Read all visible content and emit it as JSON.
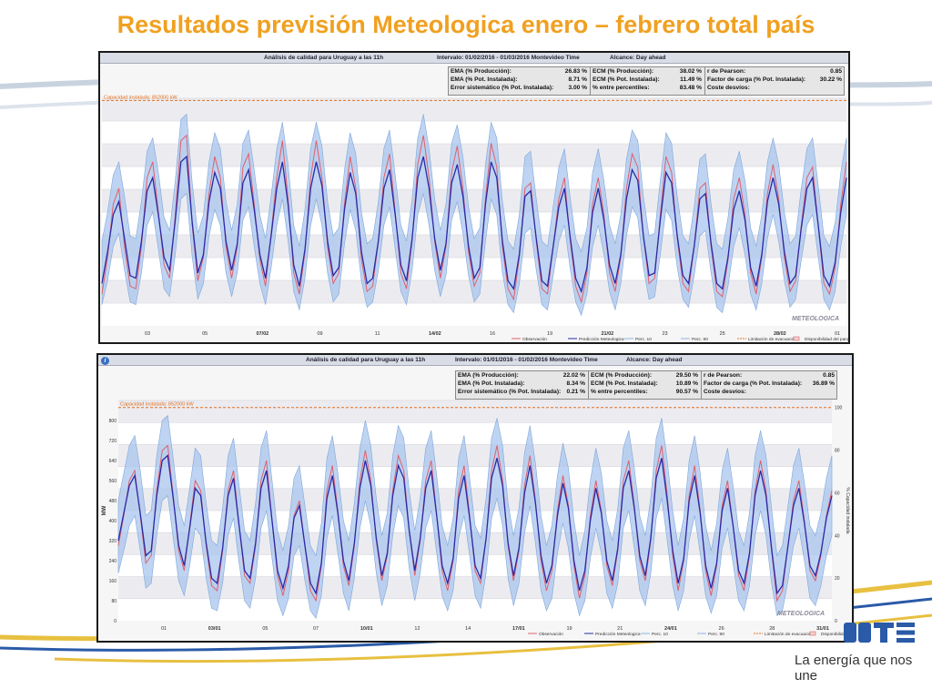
{
  "slide": {
    "title": "Resultados previsión Meteologica enero – febrero total país",
    "logo_tagline": "La energía que nos une"
  },
  "colors": {
    "title": "#f0a020",
    "observation": "#e0606a",
    "prediction": "#2a2aa8",
    "band": "#a9c6ee",
    "limit": "#e07020"
  },
  "chart_data": [
    {
      "type": "line",
      "title": "Análisis de calidad para Uruguay a las 11h",
      "interval": "Intervalo: 01/02/2016 - 01/03/2016 Montevideo Time",
      "alcance": "Alcance: Day ahead",
      "capacity_label": "Capacidad instalada: 852000 kW",
      "stats": [
        [
          [
            "EMA (% Producción):",
            "26.83 %"
          ],
          [
            "EMA (% Pot. Instalada):",
            "8.71 %"
          ],
          [
            "Error sistemático (% Pot. Instalada):",
            "3.00 %"
          ]
        ],
        [
          [
            "ECM (% Producción):",
            "38.02 %"
          ],
          [
            "ECM (% Pot. Instalada):",
            "11.49 %"
          ],
          [
            "% entre percentiles:",
            "83.48 %"
          ]
        ],
        [
          [
            "r de Pearson:",
            "0.85"
          ],
          [
            "Factor de carga (% Pot. Instalada):",
            "30.22 %"
          ],
          [
            "Coste desvíos:",
            ""
          ]
        ]
      ],
      "x_ticks": [
        "03",
        "05",
        "07/02",
        "09",
        "11",
        "14/02",
        "16",
        "19",
        "21/02",
        "23",
        "25",
        "28/02",
        "01"
      ],
      "legend": [
        "Observación",
        "Predicción Meteologica",
        "Perc. 10",
        "Perc. 90",
        "Limitación de evacuación",
        "Disponibilidad del parque"
      ],
      "watermark": "METEOLOGICA",
      "y_range": [
        0,
        860
      ],
      "capacity": 852,
      "observation": [
        120,
        260,
        460,
        520,
        300,
        150,
        140,
        300,
        560,
        620,
        430,
        230,
        180,
        420,
        700,
        720,
        380,
        170,
        260,
        500,
        640,
        560,
        300,
        180,
        300,
        600,
        650,
        460,
        250,
        150,
        350,
        560,
        700,
        480,
        200,
        120,
        280,
        560,
        700,
        560,
        300,
        160,
        200,
        460,
        640,
        520,
        250,
        130,
        150,
        320,
        560,
        650,
        430,
        200,
        140,
        320,
        610,
        720,
        560,
        320,
        180,
        300,
        580,
        680,
        520,
        280,
        150,
        200,
        480,
        690,
        600,
        300,
        140,
        100,
        260,
        520,
        540,
        320,
        140,
        120,
        300,
        480,
        560,
        330,
        150,
        90,
        200,
        460,
        560,
        420,
        200,
        130,
        260,
        520,
        650,
        600,
        340,
        160,
        180,
        420,
        640,
        580,
        330,
        160,
        130,
        300,
        520,
        540,
        300,
        130,
        110,
        250,
        480,
        560,
        420,
        200,
        120,
        260,
        500,
        610,
        480,
        260,
        130,
        170,
        380,
        560,
        600,
        380,
        160,
        120,
        220,
        460,
        620
      ],
      "prediction": [
        160,
        280,
        420,
        470,
        330,
        190,
        180,
        320,
        510,
        560,
        420,
        260,
        210,
        400,
        620,
        640,
        390,
        200,
        270,
        470,
        580,
        520,
        320,
        210,
        310,
        540,
        590,
        440,
        270,
        180,
        340,
        520,
        620,
        460,
        230,
        150,
        290,
        520,
        620,
        530,
        320,
        190,
        220,
        440,
        580,
        500,
        280,
        160,
        180,
        320,
        520,
        590,
        420,
        230,
        170,
        330,
        560,
        640,
        520,
        330,
        210,
        310,
        540,
        610,
        490,
        300,
        180,
        220,
        460,
        620,
        560,
        320,
        170,
        140,
        270,
        490,
        510,
        330,
        170,
        150,
        300,
        450,
        520,
        340,
        180,
        130,
        220,
        430,
        520,
        400,
        230,
        160,
        270,
        480,
        590,
        550,
        340,
        190,
        200,
        400,
        580,
        540,
        340,
        190,
        160,
        300,
        480,
        500,
        310,
        160,
        140,
        260,
        440,
        510,
        400,
        220,
        150,
        270,
        470,
        560,
        460,
        280,
        160,
        190,
        370,
        520,
        560,
        380,
        190,
        150,
        240,
        430,
        560
      ],
      "p10": [
        80,
        170,
        300,
        350,
        210,
        90,
        80,
        200,
        380,
        430,
        290,
        140,
        110,
        270,
        480,
        500,
        260,
        100,
        160,
        340,
        440,
        380,
        200,
        110,
        200,
        400,
        450,
        300,
        160,
        80,
        220,
        380,
        480,
        320,
        130,
        60,
        180,
        380,
        480,
        380,
        200,
        90,
        120,
        310,
        440,
        360,
        170,
        70,
        90,
        210,
        380,
        450,
        290,
        130,
        80,
        210,
        420,
        500,
        380,
        210,
        110,
        190,
        400,
        470,
        350,
        190,
        90,
        120,
        320,
        480,
        420,
        200,
        80,
        50,
        160,
        350,
        370,
        210,
        80,
        60,
        190,
        320,
        380,
        220,
        90,
        40,
        120,
        300,
        380,
        270,
        130,
        60,
        160,
        340,
        450,
        410,
        220,
        100,
        110,
        270,
        440,
        400,
        220,
        100,
        70,
        190,
        340,
        360,
        200,
        70,
        50,
        150,
        300,
        370,
        270,
        120,
        60,
        160,
        330,
        420,
        320,
        170,
        70,
        100,
        250,
        380,
        420,
        260,
        100,
        60,
        130,
        300,
        420
      ],
      "p90": [
        320,
        430,
        570,
        620,
        490,
        340,
        330,
        470,
        660,
        710,
        580,
        410,
        360,
        550,
        780,
        800,
        540,
        350,
        420,
        620,
        730,
        670,
        470,
        360,
        460,
        690,
        740,
        590,
        420,
        330,
        490,
        670,
        770,
        610,
        380,
        300,
        440,
        670,
        770,
        680,
        470,
        340,
        370,
        590,
        730,
        650,
        430,
        310,
        330,
        470,
        670,
        740,
        570,
        380,
        320,
        480,
        710,
        800,
        670,
        480,
        360,
        460,
        690,
        760,
        640,
        450,
        330,
        370,
        610,
        770,
        710,
        470,
        320,
        290,
        420,
        640,
        660,
        480,
        320,
        300,
        450,
        600,
        670,
        490,
        330,
        280,
        370,
        580,
        670,
        550,
        380,
        310,
        420,
        630,
        740,
        700,
        490,
        340,
        350,
        550,
        730,
        690,
        490,
        340,
        310,
        450,
        630,
        650,
        460,
        310,
        290,
        410,
        590,
        660,
        550,
        370,
        300,
        420,
        620,
        710,
        610,
        430,
        310,
        340,
        520,
        670,
        710,
        530,
        340,
        300,
        390,
        580,
        710
      ]
    },
    {
      "type": "line",
      "title": "Análisis de calidad para Uruguay a las 11h",
      "interval": "Intervalo: 01/01/2016 - 01/02/2016 Montevideo Time",
      "alcance": "Alcance: Day ahead",
      "capacity_label": "Capacidad instalada: 852000 kW",
      "ylabel": "MW",
      "y2label": "% Capacidad instalada",
      "stats": [
        [
          [
            "EMA (% Producción):",
            "22.02 %"
          ],
          [
            "EMA (% Pot. Instalada):",
            "8.34 %"
          ],
          [
            "Error sistemático (% Pot. Instalada):",
            "0.21 %"
          ]
        ],
        [
          [
            "ECM (% Producción):",
            "29.50 %"
          ],
          [
            "ECM (% Pot. Instalada):",
            "10.89 %"
          ],
          [
            "% entre percentiles:",
            "90.57 %"
          ]
        ],
        [
          [
            "r de Pearson:",
            "0.85"
          ],
          [
            "Factor de carga (% Pot. Instalada):",
            "36.89 %"
          ],
          [
            "Coste desvíos:",
            ""
          ]
        ]
      ],
      "x_ticks": [
        "01",
        "03/01",
        "05",
        "07",
        "10/01",
        "12",
        "14",
        "17/01",
        "19",
        "21",
        "24/01",
        "26",
        "28",
        "31/01"
      ],
      "y_ticks": [
        "0",
        "80",
        "160",
        "240",
        "320",
        "400",
        "480",
        "560",
        "640",
        "720",
        "800"
      ],
      "y2_ticks": [
        "0",
        "20",
        "40",
        "60",
        "80",
        "100"
      ],
      "legend": [
        "Observación",
        "Predicción Meteologica",
        "Perc. 10",
        "Perc. 90",
        "Limitación de evacuación",
        "Disponibilidad del parque"
      ],
      "watermark": "METEOLOGICA",
      "y_range": [
        0,
        880
      ],
      "capacity": 852,
      "observation": [
        300,
        420,
        560,
        600,
        420,
        230,
        260,
        520,
        680,
        700,
        500,
        280,
        200,
        380,
        560,
        520,
        300,
        140,
        120,
        280,
        520,
        600,
        380,
        180,
        150,
        300,
        560,
        640,
        400,
        180,
        100,
        200,
        420,
        480,
        300,
        120,
        80,
        220,
        520,
        620,
        440,
        220,
        140,
        300,
        560,
        680,
        560,
        320,
        160,
        260,
        520,
        660,
        600,
        360,
        180,
        320,
        560,
        640,
        420,
        200,
        120,
        240,
        520,
        620,
        420,
        200,
        150,
        330,
        600,
        700,
        560,
        300,
        160,
        280,
        540,
        660,
        480,
        240,
        120,
        200,
        440,
        580,
        460,
        220,
        90,
        180,
        420,
        560,
        440,
        220,
        140,
        280,
        560,
        640,
        460,
        240,
        160,
        320,
        600,
        700,
        500,
        260,
        120,
        240,
        500,
        620,
        440,
        200,
        100,
        220,
        460,
        560,
        380,
        180,
        120,
        260,
        520,
        640,
        520,
        280,
        80,
        120,
        300,
        480,
        560,
        400,
        200,
        160,
        260,
        420,
        520
      ],
      "prediction": [
        320,
        430,
        540,
        580,
        430,
        260,
        280,
        500,
        640,
        660,
        490,
        300,
        220,
        370,
        530,
        500,
        310,
        170,
        150,
        290,
        500,
        570,
        380,
        200,
        170,
        310,
        530,
        600,
        400,
        200,
        130,
        220,
        410,
        460,
        300,
        150,
        110,
        230,
        490,
        580,
        430,
        240,
        160,
        310,
        530,
        640,
        540,
        330,
        180,
        270,
        500,
        620,
        570,
        360,
        200,
        330,
        530,
        600,
        420,
        220,
        150,
        250,
        490,
        580,
        410,
        220,
        170,
        330,
        570,
        650,
        540,
        310,
        180,
        290,
        510,
        620,
        470,
        260,
        150,
        220,
        420,
        550,
        450,
        240,
        120,
        200,
        400,
        530,
        430,
        240,
        160,
        290,
        530,
        600,
        450,
        260,
        180,
        330,
        570,
        650,
        480,
        280,
        150,
        250,
        480,
        580,
        430,
        220,
        130,
        230,
        440,
        530,
        380,
        200,
        150,
        270,
        500,
        600,
        500,
        290,
        110,
        140,
        300,
        460,
        530,
        390,
        220,
        180,
        270,
        410,
        500
      ],
      "p10": [
        190,
        280,
        380,
        420,
        280,
        130,
        150,
        340,
        480,
        500,
        330,
        160,
        100,
        220,
        370,
        340,
        170,
        50,
        40,
        150,
        340,
        410,
        230,
        80,
        50,
        170,
        370,
        440,
        250,
        80,
        20,
        90,
        260,
        300,
        160,
        40,
        10,
        100,
        330,
        420,
        270,
        110,
        40,
        170,
        370,
        480,
        380,
        190,
        60,
        140,
        340,
        460,
        410,
        210,
        80,
        190,
        370,
        440,
        270,
        100,
        40,
        120,
        330,
        420,
        260,
        100,
        50,
        190,
        410,
        490,
        380,
        170,
        60,
        150,
        350,
        460,
        310,
        120,
        40,
        90,
        270,
        390,
        290,
        110,
        20,
        80,
        250,
        370,
        270,
        110,
        50,
        150,
        370,
        440,
        290,
        120,
        60,
        190,
        410,
        490,
        320,
        140,
        40,
        120,
        320,
        420,
        270,
        100,
        30,
        100,
        290,
        370,
        230,
        80,
        40,
        140,
        340,
        440,
        340,
        150,
        20,
        40,
        160,
        300,
        370,
        240,
        90,
        60,
        140,
        260,
        340
      ],
      "p90": [
        480,
        590,
        700,
        740,
        600,
        420,
        440,
        660,
        800,
        820,
        650,
        460,
        380,
        530,
        690,
        660,
        470,
        320,
        300,
        450,
        660,
        730,
        540,
        360,
        320,
        470,
        690,
        760,
        560,
        360,
        280,
        380,
        570,
        620,
        460,
        300,
        260,
        390,
        650,
        740,
        590,
        400,
        320,
        470,
        690,
        800,
        700,
        490,
        340,
        430,
        660,
        780,
        730,
        520,
        360,
        490,
        690,
        760,
        580,
        380,
        300,
        410,
        650,
        740,
        570,
        380,
        330,
        490,
        730,
        810,
        700,
        470,
        340,
        450,
        670,
        780,
        630,
        420,
        300,
        380,
        580,
        710,
        610,
        400,
        260,
        360,
        560,
        690,
        590,
        400,
        320,
        450,
        690,
        760,
        610,
        420,
        340,
        490,
        730,
        810,
        640,
        440,
        300,
        410,
        640,
        740,
        590,
        380,
        280,
        390,
        600,
        690,
        540,
        360,
        300,
        430,
        660,
        760,
        660,
        450,
        260,
        300,
        460,
        620,
        690,
        550,
        380,
        340,
        430,
        570,
        660
      ]
    }
  ]
}
